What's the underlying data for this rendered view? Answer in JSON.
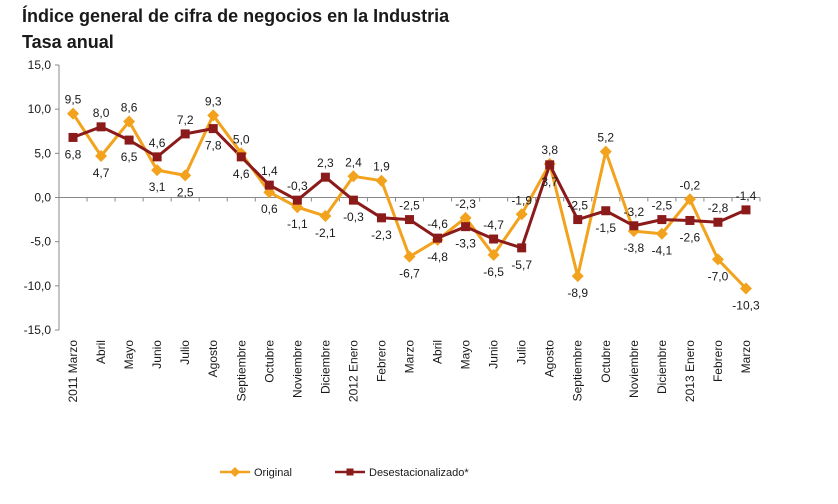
{
  "chart_data": {
    "type": "line",
    "title": "Índice general de cifra de negocios en la Industria",
    "subtitle": "Tasa anual",
    "xlabel": "",
    "ylabel": "",
    "ylim": [
      -15,
      15
    ],
    "yticks": [
      "15,0",
      "10,0",
      "5,0",
      "0,0",
      "-5,0",
      "-10,0",
      "-15,0"
    ],
    "grid": false,
    "legend_position": "bottom",
    "categories": [
      "2011 Marzo",
      "Abril",
      "Mayo",
      "Junio",
      "Julio",
      "Agosto",
      "Septiembre",
      "Octubre",
      "Noviembre",
      "Diciembre",
      "2012 Enero",
      "Febrero",
      "Marzo",
      "Abril",
      "Mayo",
      "Junio",
      "Julio",
      "Agosto",
      "Septiembre",
      "Octubre",
      "Noviembre",
      "Diciembre",
      "2013 Enero",
      "Febrero",
      "Marzo"
    ],
    "series": [
      {
        "name": "Original",
        "color": "#F2A21C",
        "marker": "diamond",
        "values": [
          9.5,
          4.7,
          8.6,
          3.1,
          2.5,
          9.3,
          5.0,
          0.6,
          -1.1,
          -2.1,
          2.4,
          1.9,
          -6.7,
          -4.8,
          -2.3,
          -6.5,
          -1.9,
          3.8,
          -8.9,
          5.2,
          -3.8,
          -4.1,
          -0.2,
          -7.0,
          -10.3
        ],
        "labels": [
          "9,5",
          "4,7",
          "8,6",
          "3,1",
          "2,5",
          "9,3",
          "5,0",
          "0,6",
          "-1,1",
          "-2,1",
          "2,4",
          "1,9",
          "-6,7",
          "-4,8",
          "-2,3",
          "-6,5",
          "-1,9",
          "3,8",
          "-8,9",
          "5,2",
          "-3,8",
          "-4,1",
          "-0,2",
          "-7,0",
          "-10,3"
        ]
      },
      {
        "name": "Desestacionalizado*",
        "color": "#8B1A1A",
        "marker": "square",
        "values": [
          6.8,
          8.0,
          6.5,
          4.6,
          7.2,
          7.8,
          4.6,
          1.4,
          -0.3,
          2.3,
          -0.3,
          -2.3,
          -2.5,
          -4.6,
          -3.3,
          -4.7,
          -5.7,
          3.7,
          -2.5,
          -1.5,
          -3.2,
          -2.5,
          -2.6,
          -2.8,
          -1.4
        ],
        "labels": [
          "6,8",
          "8,0",
          "6,5",
          "4,6",
          "7,2",
          "7,8",
          "4,6",
          "1,4",
          "-0,3",
          "2,3",
          "-0,3",
          "-2,3",
          "-2,5",
          "-4,6",
          "-3,3",
          "-4,7",
          "-5,7",
          "3,7",
          "-2,5",
          "-1,5",
          "-3,2",
          "-2,5",
          "-2,6",
          "-2,8",
          "-1,4"
        ]
      }
    ]
  }
}
